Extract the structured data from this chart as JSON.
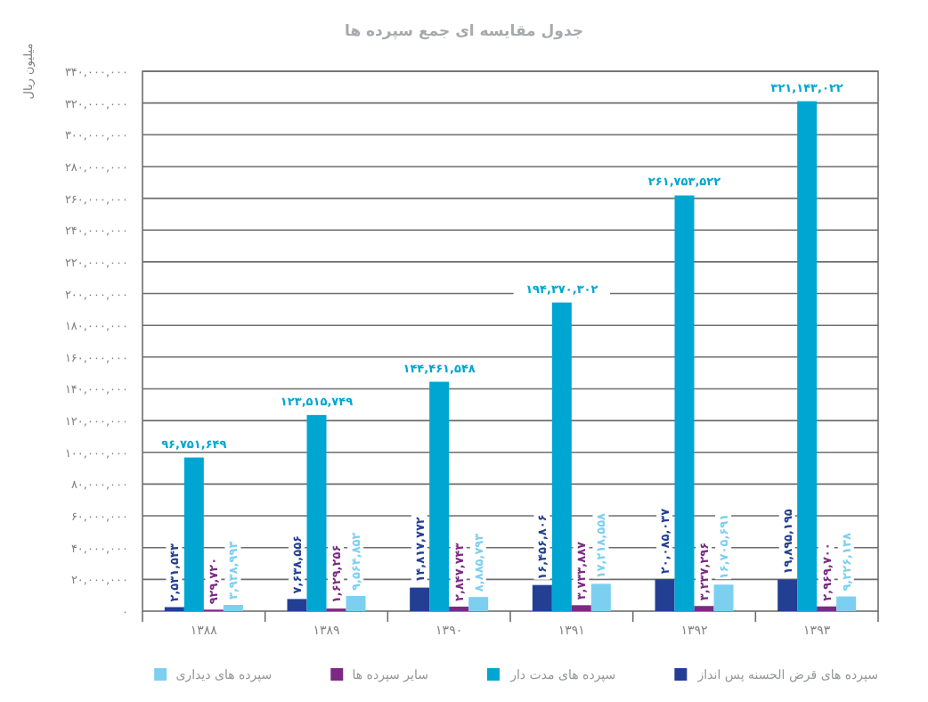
{
  "chart_data": {
    "type": "bar",
    "title": "جدول مقایسه ای جمع سپرده ها",
    "ylabel": "میلیون ریال",
    "categories": [
      "۱۳۸۸",
      "۱۳۸۹",
      "۱۳۹۰",
      "۱۳۹۱",
      "۱۳۹۲",
      "۱۳۹۳"
    ],
    "series": [
      {
        "name": "سپرده های قرض الحسنه پس انداز",
        "color": "#233f93",
        "values": [
          2531543,
          7638556,
          14817772,
          16456806,
          20085037,
          19895195
        ],
        "value_labels": [
          "۲,۵۳۱,۵۴۳",
          "۷,۶۳۸,۵۵۶",
          "۱۴,۸۱۷,۷۷۲",
          "۱۶,۴۵۶,۸۰۶",
          "۲۰,۰۸۵,۰۳۷",
          "۱۹,۸۹۵,۱۹۵"
        ]
      },
      {
        "name": "سپرده های مدت دار",
        "color": "#00a6d2",
        "values": [
          96751649,
          123515749,
          144461548,
          194370302,
          261753522,
          321143022
        ],
        "value_labels": [
          "۹۶,۷۵۱,۶۴۹",
          "۱۲۳,۵۱۵,۷۴۹",
          "۱۴۴,۴۶۱,۵۴۸",
          "۱۹۴,۳۷۰,۳۰۲",
          "۲۶۱,۷۵۳,۵۲۲",
          "۳۲۱,۱۴۳,۰۲۲"
        ]
      },
      {
        "name": "سایر سپرده ها",
        "color": "#7b2a83",
        "values": [
          929720,
          1629256,
          2847743,
          3733887,
          3237296,
          2969700
        ],
        "value_labels": [
          "۹۲۹,۷۲۰",
          "۱,۶۲۹,۲۵۶",
          "۲,۸۴۷,۷۴۳",
          "۳,۷۳۳,۸۸۷",
          "۳,۲۳۷,۲۹۶",
          "۲,۹۶۹,۷۰۰"
        ]
      },
      {
        "name": "سپرده های دیداری",
        "color": "#7dcff0",
        "values": [
          3938993,
          9564852,
          8885793,
          17218558,
          16705691,
          9226138
        ],
        "value_labels": [
          "۳,۹۳۸,۹۹۳",
          "۹,۵۶۴,۸۵۲",
          "۸,۸۸۵,۷۹۳",
          "۱۷,۲۱۸,۵۵۸",
          "۱۶,۷۰۵,۶۹۱",
          "۹,۲۲۶,۱۳۸"
        ]
      }
    ],
    "ylim": [
      0,
      340000000
    ],
    "yticks": [
      {
        "value": 0,
        "label": "۰"
      },
      {
        "value": 20000000,
        "label": "۲۰,۰۰۰,۰۰۰"
      },
      {
        "value": 40000000,
        "label": "۴۰,۰۰۰,۰۰۰"
      },
      {
        "value": 60000000,
        "label": "۶۰,۰۰۰,۰۰۰"
      },
      {
        "value": 80000000,
        "label": "۸۰,۰۰۰,۰۰۰"
      },
      {
        "value": 100000000,
        "label": "۱۰۰,۰۰۰,۰۰۰"
      },
      {
        "value": 120000000,
        "label": "۱۲۰,۰۰۰,۰۰۰"
      },
      {
        "value": 140000000,
        "label": "۱۴۰,۰۰۰,۰۰۰"
      },
      {
        "value": 160000000,
        "label": "۱۶۰,۰۰۰,۰۰۰"
      },
      {
        "value": 180000000,
        "label": "۱۸۰,۰۰۰,۰۰۰"
      },
      {
        "value": 200000000,
        "label": "۲۰۰,۰۰۰,۰۰۰"
      },
      {
        "value": 220000000,
        "label": "۲۲۰,۰۰۰,۰۰۰"
      },
      {
        "value": 240000000,
        "label": "۲۴۰,۰۰۰,۰۰۰"
      },
      {
        "value": 260000000,
        "label": "۲۶۰,۰۰۰,۰۰۰"
      },
      {
        "value": 280000000,
        "label": "۲۸۰,۰۰۰,۰۰۰"
      },
      {
        "value": 300000000,
        "label": "۳۰۰,۰۰۰,۰۰۰"
      },
      {
        "value": 320000000,
        "label": "۳۲۰,۰۰۰,۰۰۰"
      },
      {
        "value": 340000000,
        "label": "۳۴۰,۰۰۰,۰۰۰"
      }
    ],
    "grid": "y",
    "legend": "bottom"
  }
}
